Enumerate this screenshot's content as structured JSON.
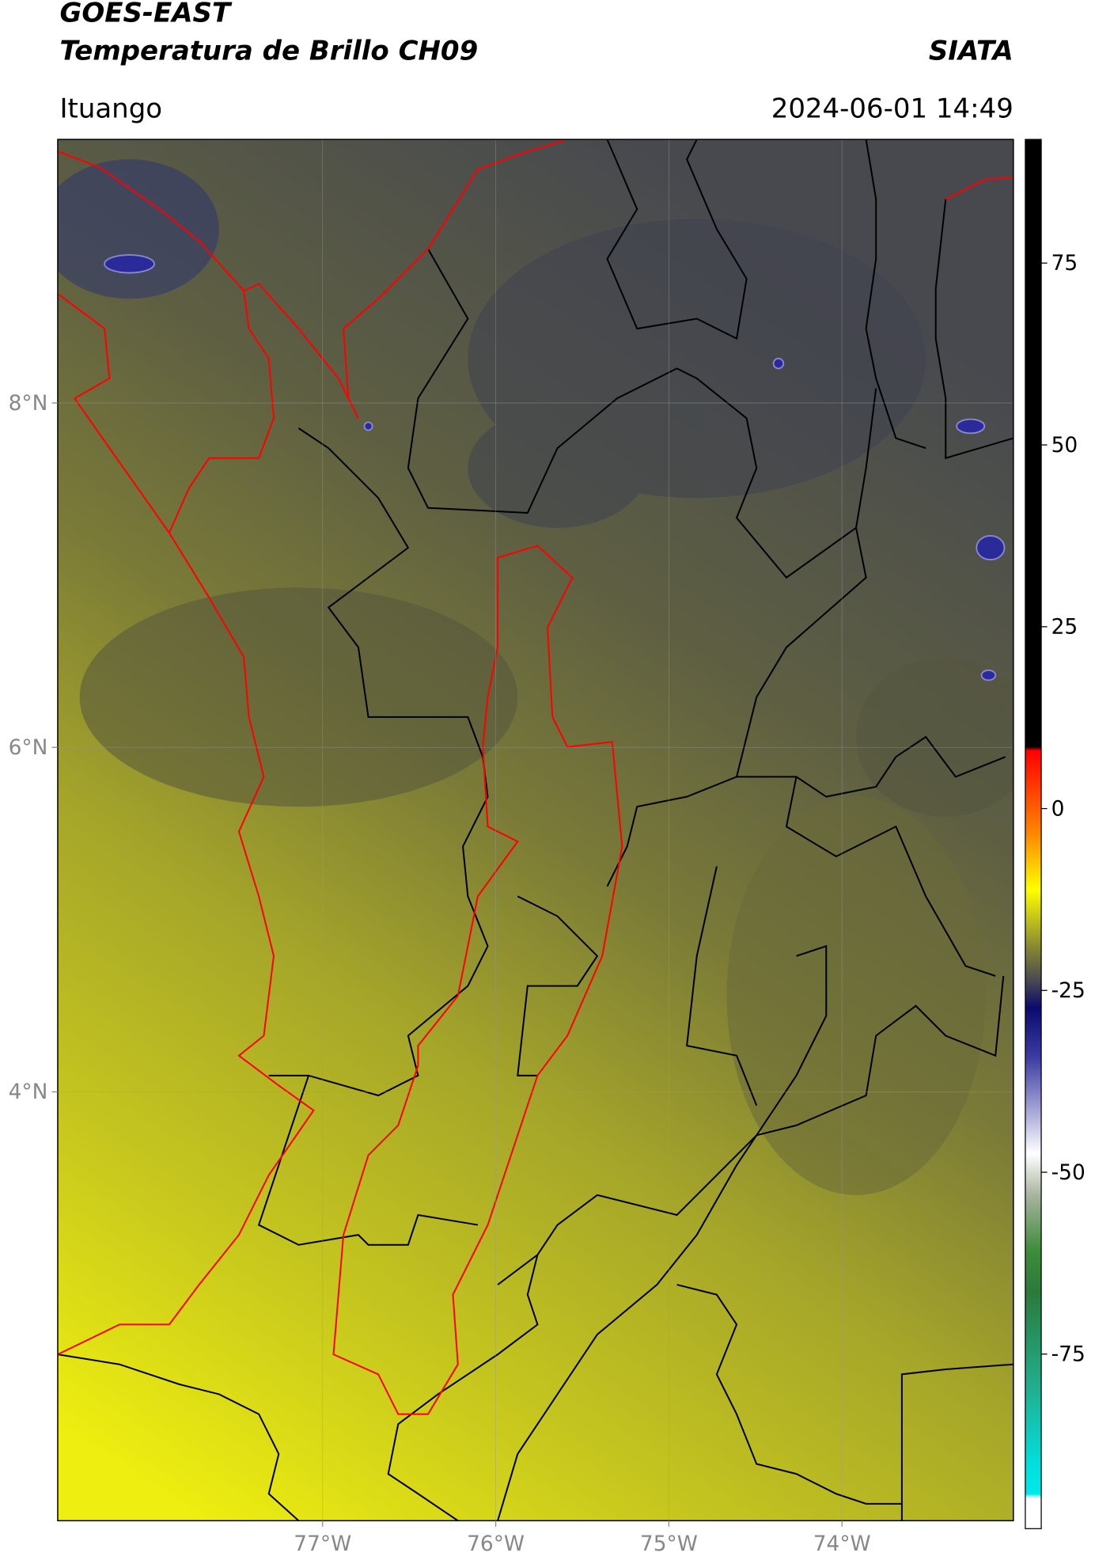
{
  "chart_data": {
    "type": "map",
    "title": "GOES-EAST",
    "subtitle": "Temperatura de Brillo CH09",
    "source": "SIATA",
    "location": "Ituango",
    "datetime": "2024-06-01 14:49",
    "xlim": [
      -78.53,
      -73.01
    ],
    "ylim": [
      1.51,
      9.53
    ],
    "xticks": [
      {
        "value": -77,
        "label": "77°W"
      },
      {
        "value": -76,
        "label": "76°W"
      },
      {
        "value": -75,
        "label": "75°W"
      },
      {
        "value": -74,
        "label": "74°W"
      }
    ],
    "yticks": [
      {
        "value": 8,
        "label": "8°N"
      },
      {
        "value": 6,
        "label": "6°N"
      },
      {
        "value": 4,
        "label": "4°N"
      }
    ],
    "grid": true,
    "colorbar": {
      "lim": [
        -99,
        92
      ],
      "ticks": [
        75,
        50,
        25,
        0,
        -25,
        -50,
        -75
      ]
    }
  }
}
